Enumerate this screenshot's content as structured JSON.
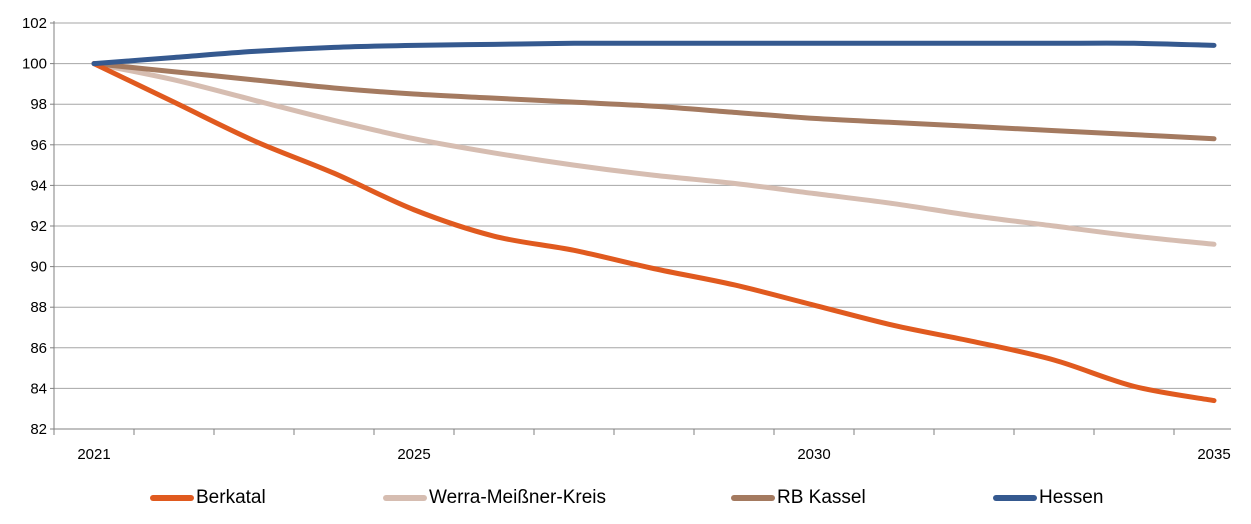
{
  "chart_data": {
    "type": "line",
    "title": "",
    "xlabel": "",
    "ylabel": "",
    "x": [
      2021,
      2022,
      2023,
      2024,
      2025,
      2026,
      2027,
      2028,
      2029,
      2030,
      2031,
      2032,
      2033,
      2034,
      2035
    ],
    "x_tick_labels": [
      "2021",
      "2025",
      "2030",
      "2035"
    ],
    "x_tick_label_values": [
      2021,
      2025,
      2030,
      2035
    ],
    "ylim": [
      82,
      102
    ],
    "y_ticks": [
      82,
      84,
      86,
      88,
      90,
      92,
      94,
      96,
      98,
      100,
      102
    ],
    "grid": "horizontal",
    "legend_position": "bottom",
    "series": [
      {
        "name": "Berkatal",
        "color": "#E05A1F",
        "values": [
          100,
          98.1,
          96.2,
          94.6,
          92.8,
          91.5,
          90.8,
          89.9,
          89.1,
          88.1,
          87.1,
          86.3,
          85.4,
          84.1,
          83.4
        ]
      },
      {
        "name": "Werra-Meißner-Kreis",
        "color": "#D6BDB1",
        "values": [
          100,
          99.2,
          98.2,
          97.2,
          96.3,
          95.6,
          95.0,
          94.5,
          94.1,
          93.6,
          93.1,
          92.5,
          92.0,
          91.5,
          91.1
        ]
      },
      {
        "name": "RB Kassel",
        "color": "#A47A60",
        "values": [
          100,
          99.6,
          99.2,
          98.8,
          98.5,
          98.3,
          98.1,
          97.9,
          97.6,
          97.3,
          97.1,
          96.9,
          96.7,
          96.5,
          96.3
        ]
      },
      {
        "name": "Hessen",
        "color": "#35598F",
        "values": [
          100,
          100.3,
          100.6,
          100.8,
          100.9,
          100.95,
          101.0,
          101.0,
          101.0,
          101.0,
          101.0,
          101.0,
          101.0,
          101.0,
          100.9
        ]
      }
    ]
  }
}
